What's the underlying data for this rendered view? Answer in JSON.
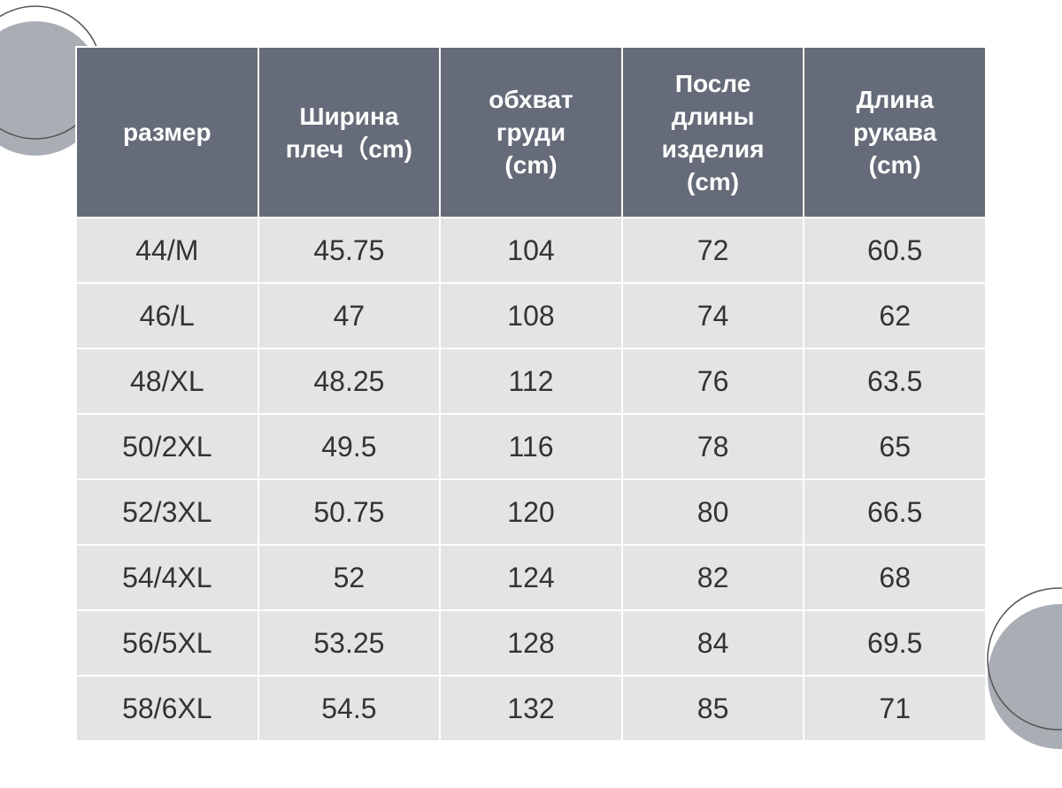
{
  "table": {
    "header": [
      "размер",
      "Ширина\nплеч（cm)",
      "обхват\nгруди\n(cm)",
      "После\nдлины\nизделия\n(cm)",
      "Длина\nрукава\n(cm)"
    ],
    "rows": [
      [
        "44/M",
        "45.75",
        "104",
        "72",
        "60.5"
      ],
      [
        "46/L",
        "47",
        "108",
        "74",
        "62"
      ],
      [
        "48/XL",
        "48.25",
        "112",
        "76",
        "63.5"
      ],
      [
        "50/2XL",
        "49.5",
        "116",
        "78",
        "65"
      ],
      [
        "52/3XL",
        "50.75",
        "120",
        "80",
        "66.5"
      ],
      [
        "54/4XL",
        "52",
        "124",
        "82",
        "68"
      ],
      [
        "56/5XL",
        "53.25",
        "128",
        "84",
        "69.5"
      ],
      [
        "58/6XL",
        "54.5",
        "132",
        "85",
        "71"
      ]
    ]
  }
}
